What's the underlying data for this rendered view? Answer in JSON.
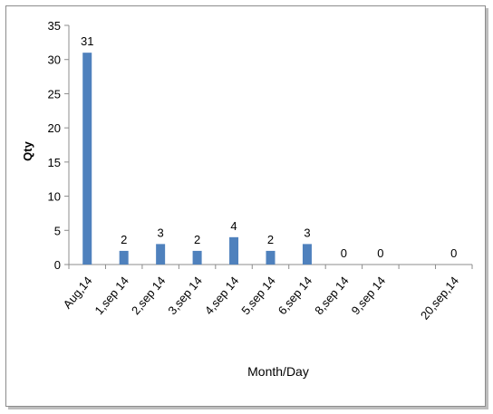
{
  "chart_data": {
    "type": "bar",
    "title": "",
    "xlabel": "Month/Day",
    "ylabel": "Qty",
    "ylim": [
      0,
      35
    ],
    "yticks": [
      0,
      5,
      10,
      15,
      20,
      25,
      30,
      35
    ],
    "grid": false,
    "legend": "none",
    "bar_color": "#4f81bd",
    "categories": [
      "Aug,14",
      "1,sep 14",
      "2,sep 14",
      "3,sep 14",
      "4,sep 14",
      "5,sep 14",
      "6,sep 14",
      "8,sep 14",
      "9,sep 14",
      "20,sep,14"
    ],
    "values": [
      31,
      2,
      3,
      2,
      4,
      2,
      3,
      0,
      0,
      0
    ],
    "data_labels": [
      "31",
      "2",
      "3",
      "2",
      "4",
      "2",
      "3",
      "0",
      "0",
      "0"
    ]
  }
}
